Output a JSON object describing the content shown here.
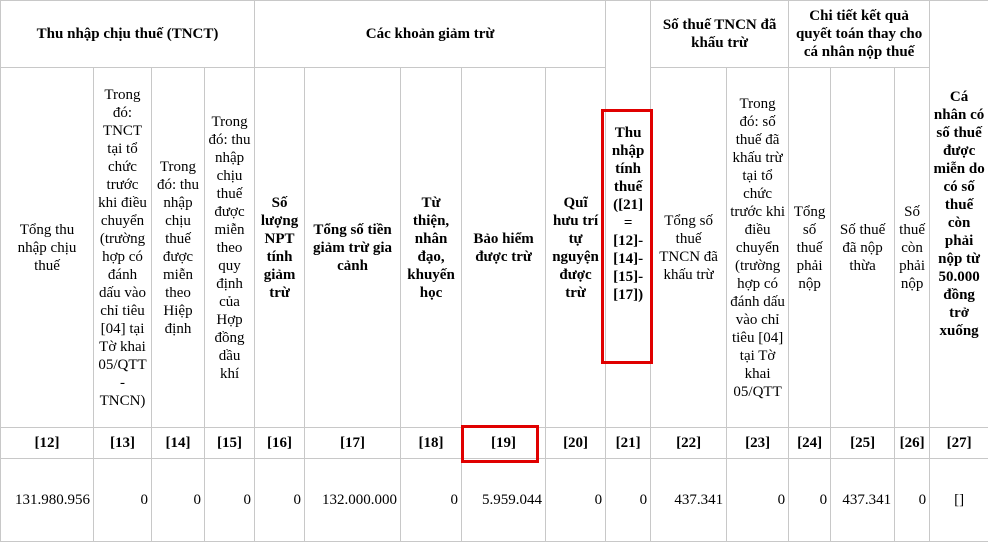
{
  "groups": {
    "tnct": "Thu nhập chịu thuế (TNCT)",
    "deductions": "Các khoản giảm trừ",
    "withheld": "Số thuế TNCN đã khấu trừ",
    "settlement": "Chi tiết kết quả quyết toán thay cho cá nhân nộp thuế",
    "exempt": "Cá nhân có số thuế được miễn do có số thuế còn phải nộp từ 50.000 đồng trở xuống"
  },
  "columns": {
    "c12": "Tổng thu nhập chịu thuế",
    "c13": "Trong đó: TNCT tại tổ chức trước khi điều chuyển (trường hợp có đánh dấu vào chỉ tiêu [04] tại Tờ khai 05/QTT - TNCN)",
    "c14": "Trong đó: thu nhập chịu thuế được miễn theo Hiệp định",
    "c15": "Trong đó: thu nhập chịu thuế được miễn theo quy định của Hợp đồng dầu khí",
    "c16": "Số lượng NPT tính giảm trừ",
    "c17": "Tổng số tiền giảm trừ gia cảnh",
    "c18": "Từ thiện, nhân đạo, khuyến học",
    "c19": "Bảo hiểm được trừ",
    "c20": "Quĩ hưu trí tự nguyện được trừ",
    "c21": "Thu nhập tính thuế ([21] = [12]-[14]-[15]-[17])",
    "c22": "Tổng số thuế TNCN đã khấu trừ",
    "c23": "Trong đó: số thuế đã khấu trừ tại tổ chức trước khi điều chuyển (trường hợp có đánh dấu vào chỉ tiêu [04] tại Tờ khai 05/QTT",
    "c24": "Tổng số thuế phải nộp",
    "c25": "Số thuế đã nộp thừa",
    "c26": "Số thuế còn phải nộp"
  },
  "codes": [
    "[12]",
    "[13]",
    "[14]",
    "[15]",
    "[16]",
    "[17]",
    "[18]",
    "[19]",
    "[20]",
    "[21]",
    "[22]",
    "[23]",
    "[24]",
    "[25]",
    "[26]",
    "[27]"
  ],
  "values": [
    "131.980.956",
    "0",
    "0",
    "0",
    "0",
    "132.000.000",
    "0",
    "5.959.044",
    "0",
    "0",
    "437.341",
    "0",
    "0",
    "437.341",
    "0",
    "[]"
  ],
  "highlight_color": "#e00000"
}
